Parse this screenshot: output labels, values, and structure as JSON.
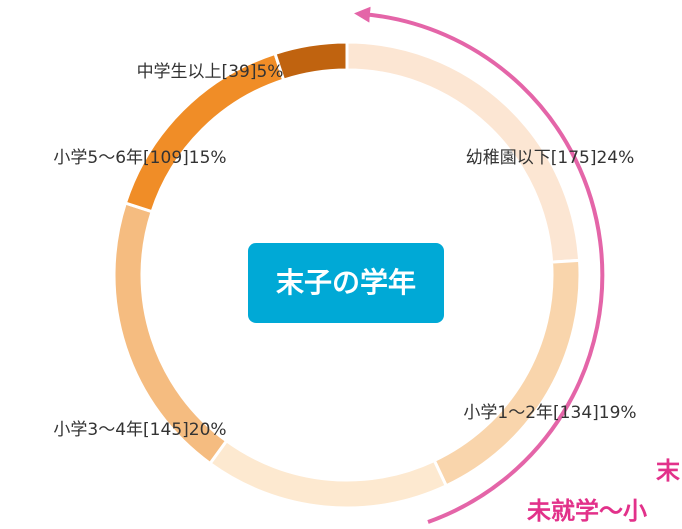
{
  "chart_data": {
    "type": "donut",
    "title": "末子の学年",
    "categories": [
      "幼稚園以下[175]24%",
      "小学1～2年[134]19%",
      null,
      "小学3～4年[145]20%",
      "小学5～6年[109]15%",
      "中学生以上[39]5%"
    ],
    "values": [
      24,
      19,
      17,
      20,
      15,
      5
    ],
    "colors": [
      "#fce6d3",
      "#f9d5ac",
      "#fde9d0",
      "#f5bc80",
      "#f08d27",
      "#c0630f"
    ],
    "annotations": [
      "末",
      "未就学～小"
    ]
  }
}
